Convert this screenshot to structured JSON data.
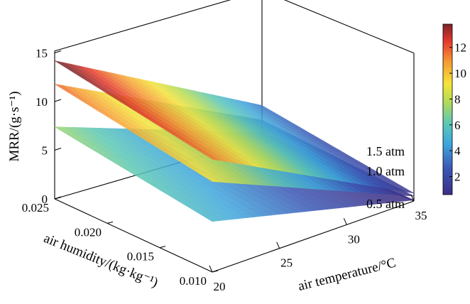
{
  "chart_data": {
    "type": "surface3d",
    "zlabel": "MRR/(g·s⁻¹)",
    "xlabel": "air temperature/°C",
    "ylabel": "air humidity/(kg·kg⁻¹)",
    "zticks": [
      "0",
      "5",
      "10",
      "15"
    ],
    "xticks": [
      "20",
      "25",
      "30",
      "35"
    ],
    "yticks": [
      "0.010",
      "0.015",
      "0.020",
      "0.025"
    ],
    "zlim": [
      0,
      15
    ],
    "xlim": [
      20,
      35
    ],
    "ylim": [
      0.01,
      0.025
    ],
    "colorbar": {
      "ticks": [
        "2",
        "4",
        "6",
        "8",
        "10",
        "12"
      ],
      "range": [
        0.6,
        13.8
      ],
      "colormap": "jet"
    },
    "series": [
      {
        "name": "1.5 atm",
        "corners": {
          "t20_h025": 14.2,
          "t20_h010": 11.6,
          "t35_h025": 3.4,
          "t35_h010": 0.8
        }
      },
      {
        "name": "1.0 atm",
        "corners": {
          "t20_h025": 11.8,
          "t20_h010": 9.3,
          "t35_h025": 1.9,
          "t35_h010": 0.5
        }
      },
      {
        "name": "0.5 atm",
        "corners": {
          "t20_h025": 7.4,
          "t20_h010": 5.2,
          "t35_h025": 0.6,
          "t35_h010": 0.1
        }
      }
    ]
  }
}
